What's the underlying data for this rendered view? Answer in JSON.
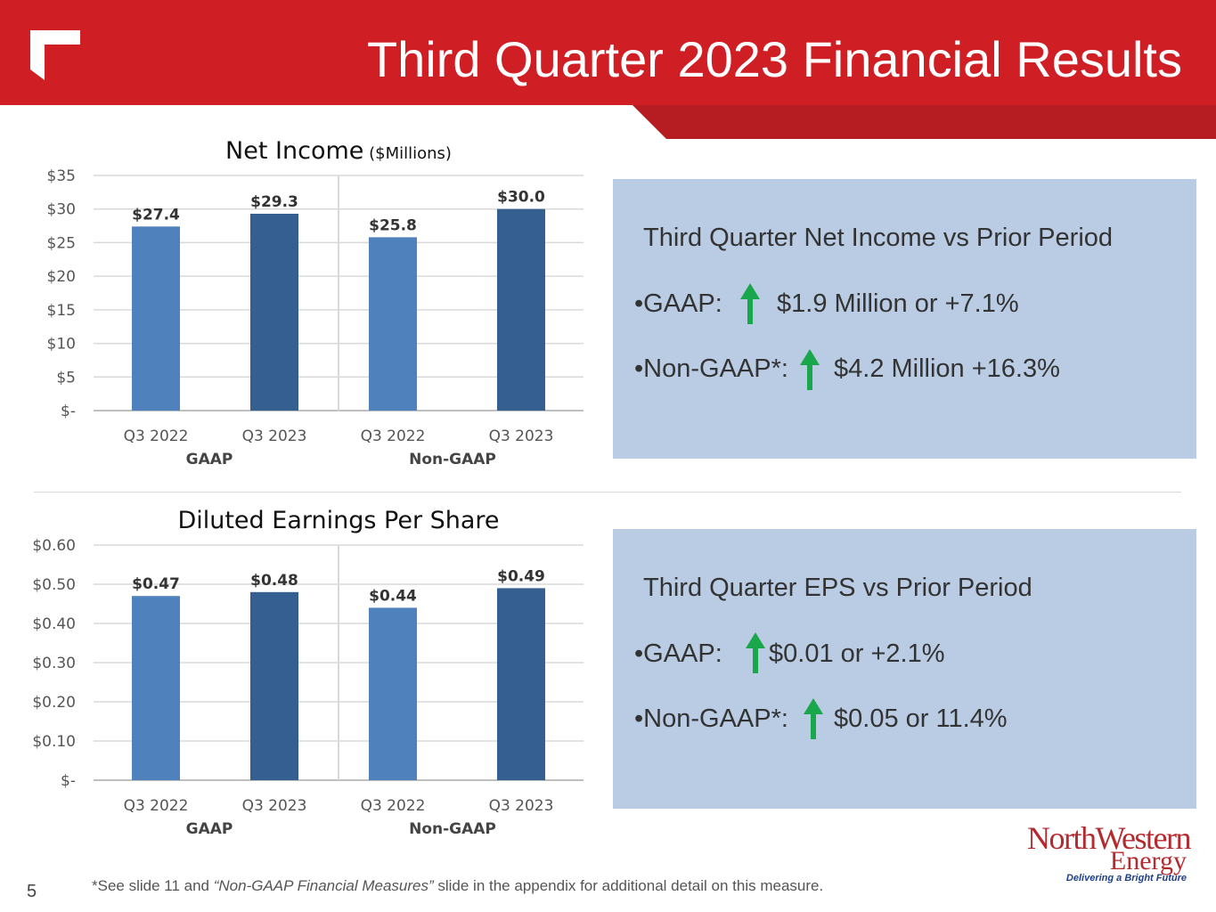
{
  "header": {
    "title": "Third Quarter 2023 Financial Results"
  },
  "chart_data": [
    {
      "type": "bar",
      "title": "Net Income",
      "subtitle": "($Millions)",
      "categories": [
        "Q3 2022",
        "Q3 2023",
        "Q3 2022",
        "Q3 2023"
      ],
      "groups": [
        "GAAP",
        "Non-GAAP"
      ],
      "values": [
        27.4,
        29.3,
        25.8,
        30.0
      ],
      "data_labels": [
        "$27.4",
        "$29.3",
        "$25.8",
        "$30.0"
      ],
      "ylim": [
        0,
        35
      ],
      "yticks": [
        0,
        5,
        10,
        15,
        20,
        25,
        30,
        35
      ],
      "ytick_labels": [
        "$-",
        "$5",
        "$10",
        "$15",
        "$20",
        "$25",
        "$30",
        "$35"
      ],
      "colors": [
        "#4f81bd",
        "#355f91",
        "#4f81bd",
        "#355f91"
      ],
      "grid": true
    },
    {
      "type": "bar",
      "title": "Diluted Earnings Per Share",
      "subtitle": "",
      "categories": [
        "Q3 2022",
        "Q3 2023",
        "Q3 2022",
        "Q3 2023"
      ],
      "groups": [
        "GAAP",
        "Non-GAAP"
      ],
      "values": [
        0.47,
        0.48,
        0.44,
        0.49
      ],
      "data_labels": [
        "$0.47",
        "$0.48",
        "$0.44",
        "$0.49"
      ],
      "ylim": [
        0,
        0.6
      ],
      "yticks": [
        0,
        0.1,
        0.2,
        0.3,
        0.4,
        0.5,
        0.6
      ],
      "ytick_labels": [
        "$-",
        "$0.10",
        "$0.20",
        "$0.30",
        "$0.40",
        "$0.50",
        "$0.60"
      ],
      "colors": [
        "#4f81bd",
        "#355f91",
        "#4f81bd",
        "#355f91"
      ],
      "grid": true
    }
  ],
  "panels": [
    {
      "title": "Third Quarter Net Income vs Prior Period",
      "gaap_label": "•GAAP:",
      "gaap_value": "$1.9 Million or +7.1%",
      "nongaap_label": "•Non-GAAP*:",
      "nongaap_value": "$4.2 Million +16.3%"
    },
    {
      "title": "Third Quarter EPS vs Prior Period",
      "gaap_label": "•GAAP:",
      "gaap_value": "$0.01 or +2.1%",
      "nongaap_label": "•Non-GAAP*:",
      "nongaap_value": "$0.05 or 11.4%"
    }
  ],
  "footer": {
    "note_prefix": "*See slide 11 and ",
    "note_italic": "“Non-GAAP Financial Measures”",
    "note_suffix": " slide in the appendix for additional detail on this measure.",
    "page_number": "5"
  },
  "logo": {
    "line1": "NorthWestern",
    "line2": "Energy",
    "tagline": "Delivering a Bright Future"
  },
  "colors": {
    "brand_red": "#cf1f25",
    "arrow_green": "#1aa64a",
    "panel_bg": "#b9cce4"
  }
}
